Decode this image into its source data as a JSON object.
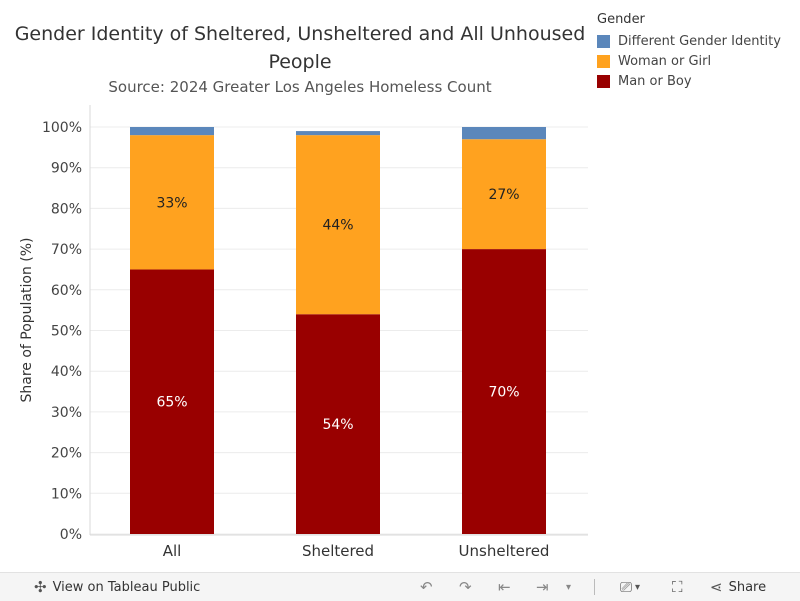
{
  "page": {
    "title_line1": "Gender Identity of Sheltered, Unsheltered and All Unhoused",
    "title_line2": "People",
    "subtitle": "Source: 2024 Greater Los Angeles Homeless Count"
  },
  "legend": {
    "title": "Gender",
    "items": [
      {
        "label": "Different Gender Identity",
        "color": "#5b87bb"
      },
      {
        "label": "Woman or Girl",
        "color": "#ffa21f"
      },
      {
        "label": "Man or Boy",
        "color": "#990000"
      }
    ]
  },
  "chart_data": {
    "type": "bar",
    "stacked": true,
    "title": "Gender Identity of Sheltered, Unsheltered and All Unhoused People",
    "subtitle": "Source: 2024 Greater Los Angeles Homeless Count",
    "xlabel": "",
    "ylabel": "Share of Population (%)",
    "ylim": [
      0,
      100
    ],
    "yticks": [
      "0%",
      "10%",
      "20%",
      "30%",
      "40%",
      "50%",
      "60%",
      "70%",
      "80%",
      "90%",
      "100%"
    ],
    "categories": [
      "All",
      "Sheltered",
      "Unsheltered"
    ],
    "series": [
      {
        "name": "Man or Boy",
        "color": "#990000",
        "values": [
          65,
          54,
          70
        ],
        "labels": [
          "65%",
          "54%",
          "70%"
        ],
        "label_color": "#ffffff"
      },
      {
        "name": "Woman or Girl",
        "color": "#ffa21f",
        "values": [
          33,
          44,
          27
        ],
        "labels": [
          "33%",
          "44%",
          "27%"
        ],
        "label_color": "#222222"
      },
      {
        "name": "Different Gender Identity",
        "color": "#5b87bb",
        "values": [
          2,
          1,
          3
        ],
        "labels": [
          "",
          "",
          ""
        ]
      }
    ],
    "grid": true
  },
  "toolbar": {
    "view_label": "View on Tableau Public",
    "share_label": "Share"
  }
}
